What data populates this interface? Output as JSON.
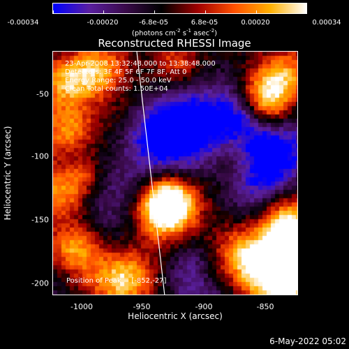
{
  "colorbar": {
    "tick_labels": [
      "-0.00034",
      "-0.00020",
      "-6.8e-05",
      "6.8e-05",
      "0.00020",
      "0.00034"
    ],
    "unit_prefix": "(photons cm",
    "unit_exp1": "-2",
    "unit_mid1": " s",
    "unit_exp2": "-1",
    "unit_mid2": " asec",
    "unit_exp3": "-2",
    "unit_suffix": ")",
    "range": [
      -0.00034,
      0.00034
    ],
    "colors": [
      "#0000ff",
      "#5a1fa0",
      "#3a0a4a",
      "#000000",
      "#a00000",
      "#ff5000",
      "#ffb000",
      "#ffffff"
    ]
  },
  "image": {
    "title": "Reconstructed RHESSI Image",
    "annotations": [
      "23-Apr-2008 13:32:48.000 to 13:38:48.000",
      "Detectors: 3F 4F 5F 6F 7F 8F, Att 0",
      "Energy Range: 25.0 - 50.0 keV",
      "Clean     Total counts: 1.50E+04"
    ],
    "peak_label": "Position of Peak = [-852,-27]",
    "limb_color": "#ffffff"
  },
  "axes": {
    "xlabel": "Heliocentric X (arcsec)",
    "ylabel": "Heliocentric Y (arcsec)",
    "xticks": [
      "-1000",
      "-950",
      "-900",
      "-850"
    ],
    "yticks": [
      "-50",
      "-100",
      "-150",
      "-200"
    ],
    "xlim": [
      -1020,
      -827
    ],
    "ylim": [
      -210,
      -18
    ]
  },
  "footer": {
    "timestamp": "6-May-2022 05:02"
  }
}
